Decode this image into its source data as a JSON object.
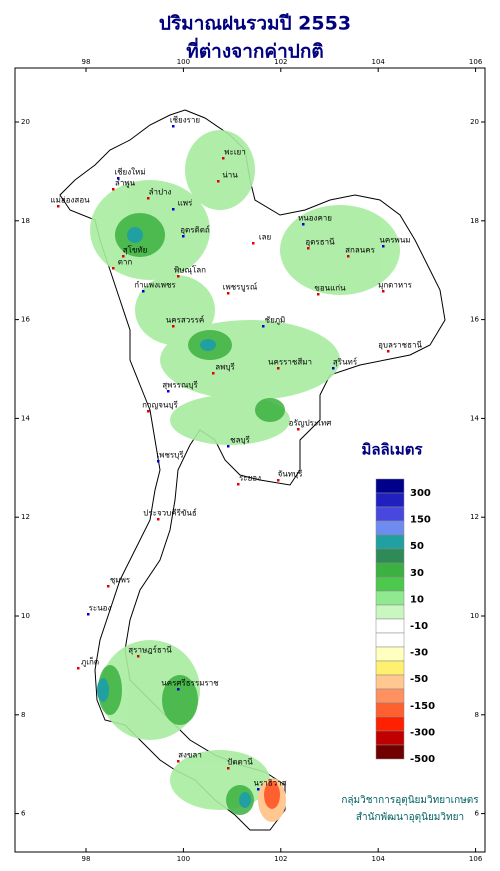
{
  "header": {
    "title": "ปริมาณฝนรวมปี 2553",
    "subtitle": "ที่ต่างจากค่าปกติ"
  },
  "axes": {
    "xticks": [
      98,
      100,
      102,
      104,
      106
    ],
    "yticks": [
      20,
      18,
      16,
      14,
      12,
      10,
      8,
      6
    ]
  },
  "legend": {
    "title": "มิลลิเมตร",
    "colors": [
      "#00008b",
      "#2020c0",
      "#4848e0",
      "#6e8cf0",
      "#20a0a0",
      "#2e8b57",
      "#3cb040",
      "#4cc84c",
      "#90e890",
      "#c8f8c0",
      "#ffffff",
      "#ffffff",
      "#ffffc0",
      "#fff070",
      "#ffc890",
      "#ff9060",
      "#ff6030",
      "#ff2000",
      "#c00000",
      "#700000"
    ],
    "labels": [
      300,
      150,
      50,
      30,
      10,
      -10,
      -30,
      -50,
      -150,
      -300,
      -500
    ]
  },
  "places": [
    "เชียงราย",
    "พะเยา",
    "น่าน",
    "เชียงใหม่",
    "ลำพูน",
    "ลำปาง",
    "แพร่",
    "แม่ฮ่องสอน",
    "ตาก",
    "อุตรดิตถ์",
    "สุโขทัย",
    "พิษณุโลก",
    "กำแพงเพชร",
    "เพชรบูรณ์",
    "เลย",
    "หนองคาย",
    "อุดรธานี",
    "สกลนคร",
    "นครพนม",
    "มุกดาหาร",
    "ขอนแก่น",
    "ชัยภูมิ",
    "นครสวรรค์",
    "ลพบุรี",
    "สุพรรณบุรี",
    "กาญจนบุรี",
    "นครราชสีมา",
    "สุรินทร์",
    "อุบลราชธานี",
    "อรัญประเทศ",
    "ชลบุรี",
    "ระยอง",
    "จันทบุรี",
    "เพชรบุรี",
    "ประจวบคีรีขันธ์",
    "ชุมพร",
    "ระนอง",
    "สุราษฎร์ธานี",
    "ภูเก็ต",
    "นครศรีธรรมราช",
    "สงขลา",
    "ปัตตานี",
    "นราธิวาส"
  ],
  "credit": [
    "กลุ่มวิชาการอุตุนิยมวิทยาเกษตร",
    "สำนักพัฒนาอุตุนิยมวิทยา"
  ]
}
